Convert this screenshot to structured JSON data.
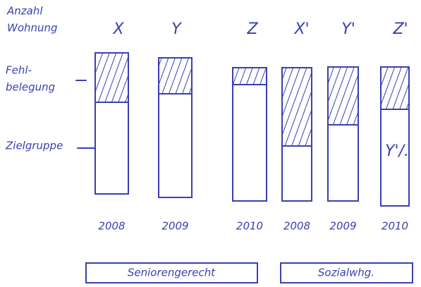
{
  "axis_label": [
    "Anzahl",
    "Wohnung"
  ],
  "row_labels": {
    "misallocation": [
      "Fehl-",
      "belegung"
    ],
    "target_group": "Zielgruppe"
  },
  "columns": [
    {
      "label": "X",
      "year": "2008"
    },
    {
      "label": "Y",
      "year": "2009"
    },
    {
      "label": "Z",
      "year": "2010"
    },
    {
      "label": "X'",
      "year": "2008"
    },
    {
      "label": "Y'",
      "year": "2009"
    },
    {
      "label": "Z'",
      "year": "2010"
    }
  ],
  "annotation": "Y'/.",
  "groups": [
    "Seniorengerecht",
    "Sozialwhg."
  ]
}
